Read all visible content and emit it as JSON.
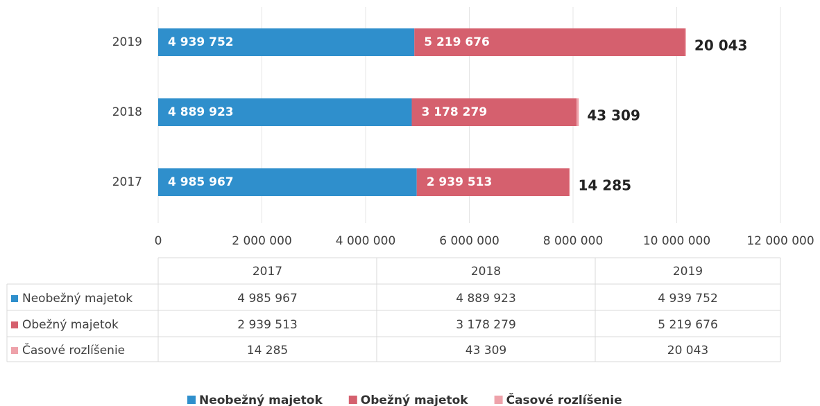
{
  "chart_data": {
    "type": "bar",
    "orientation": "horizontal",
    "stacked": true,
    "categories": [
      "2017",
      "2018",
      "2019"
    ],
    "series": [
      {
        "name": "Neobežný majetok",
        "color": "#2f8fcc",
        "values": [
          4985967,
          4889923,
          4939752
        ],
        "value_labels": [
          "4 985 967",
          "4 889 923",
          "4 939 752"
        ]
      },
      {
        "name": "Obežný majetok",
        "color": "#d5606e",
        "values": [
          2939513,
          3178279,
          5219676
        ],
        "value_labels": [
          "2 939 513",
          "3 178 279",
          "5 219 676"
        ]
      },
      {
        "name": "Časové rozlíšenie",
        "color": "#eea2aa",
        "values": [
          14285,
          43309,
          20043
        ],
        "value_labels": [
          "14 285",
          "43 309",
          "20 043"
        ]
      }
    ],
    "xlim": [
      0,
      12000000
    ],
    "xticks": [
      0,
      {
        "value": 2000000,
        "label": "2 000 000"
      },
      {
        "value": 4000000,
        "label": "4 000 000"
      },
      {
        "value": 6000000,
        "label": "6 000 000"
      },
      {
        "value": 8000000,
        "label": "8 000 000"
      },
      {
        "value": 10000000,
        "label": "10 000 000"
      },
      {
        "value": 12000000,
        "label": "12 000 000"
      }
    ],
    "grid": true,
    "data_table": true,
    "legend": "bottom"
  }
}
